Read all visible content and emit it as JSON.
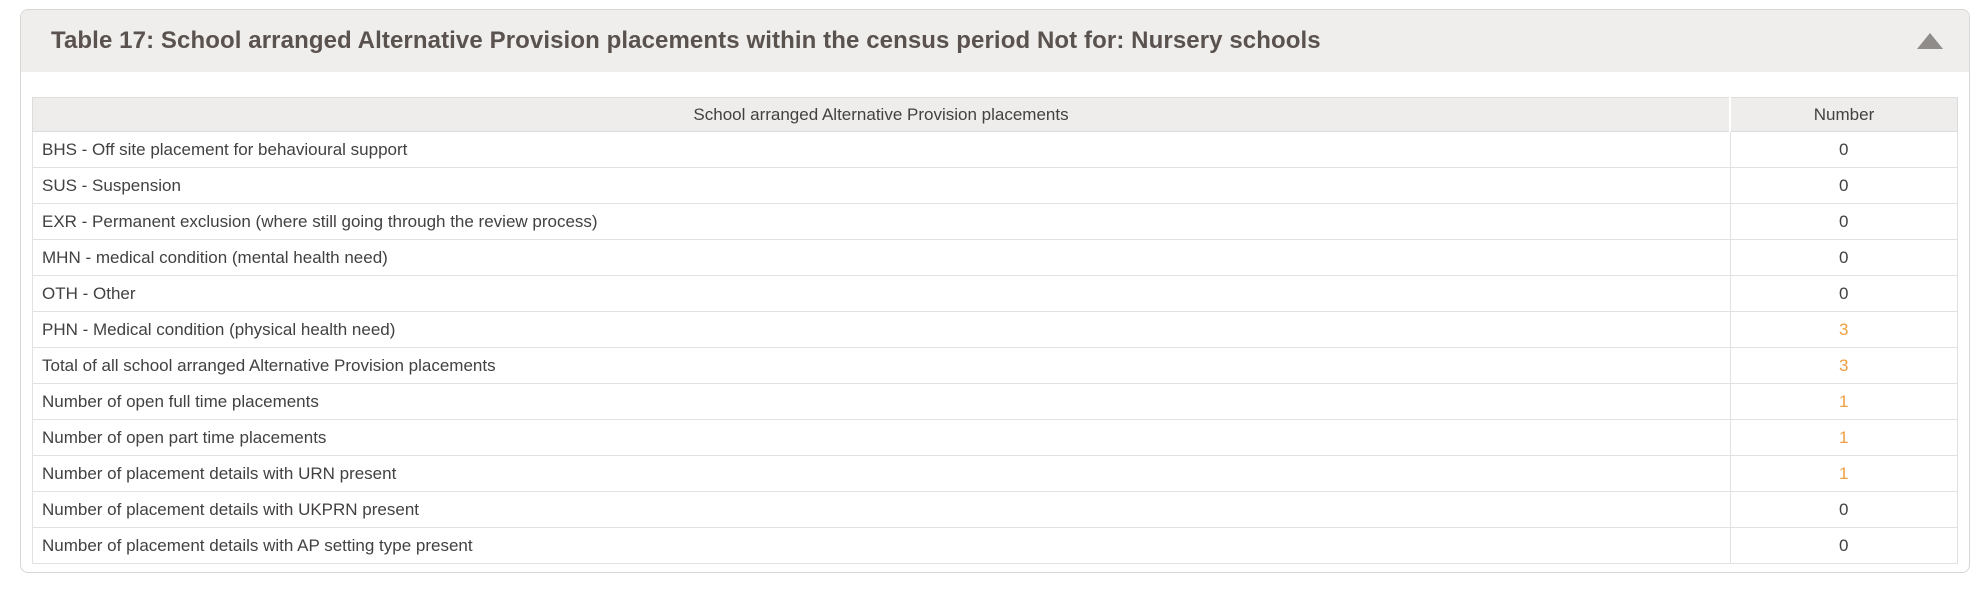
{
  "colors": {
    "highlight_value": "#EF9F40",
    "normal_value": "#434140",
    "header_strip_bg": "#efeeec",
    "table_header_bg": "#eeedec",
    "title_text": "#5a524e",
    "arrow_gray": "#908c89"
  },
  "icons": {
    "collapse": "triangle-up"
  },
  "panel": {
    "title": "Table 17: School arranged Alternative Provision placements within the census period Not for: Nursery schools"
  },
  "table": {
    "columns": [
      "School arranged Alternative Provision placements",
      "Number"
    ],
    "rows": [
      {
        "label": "BHS - Off site placement for behavioural support",
        "value": "0",
        "highlight": false
      },
      {
        "label": "SUS - Suspension",
        "value": "0",
        "highlight": false
      },
      {
        "label": "EXR - Permanent exclusion (where still going through the review process)",
        "value": "0",
        "highlight": false
      },
      {
        "label": "MHN - medical condition (mental health need)",
        "value": "0",
        "highlight": false
      },
      {
        "label": "OTH - Other",
        "value": "0",
        "highlight": false
      },
      {
        "label": "PHN - Medical condition (physical health need)",
        "value": "3",
        "highlight": true
      },
      {
        "label": "Total of all school arranged Alternative Provision placements",
        "value": "3",
        "highlight": true
      },
      {
        "label": "Number of open full time placements",
        "value": "1",
        "highlight": true
      },
      {
        "label": "Number of open part time placements",
        "value": "1",
        "highlight": true
      },
      {
        "label": "Number of placement details with URN present",
        "value": "1",
        "highlight": true
      },
      {
        "label": "Number of placement details with UKPRN present",
        "value": "0",
        "highlight": false
      },
      {
        "label": "Number of placement details with AP setting type present",
        "value": "0",
        "highlight": false
      }
    ]
  }
}
